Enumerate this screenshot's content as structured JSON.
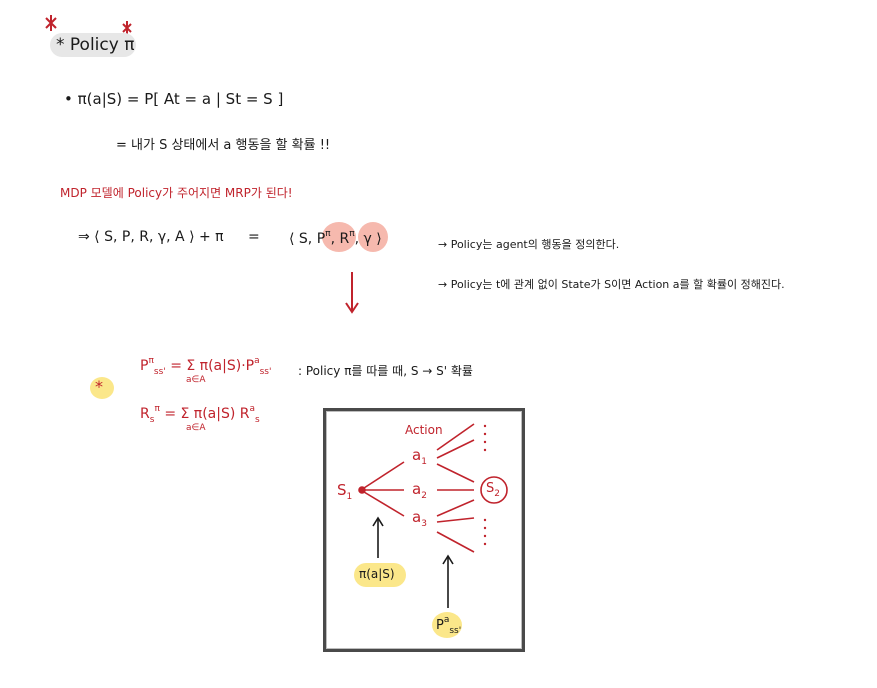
{
  "heading": {
    "label": "Policy π",
    "bullet": "*"
  },
  "definition": {
    "bullet": "•",
    "formula": "π(a|S) = P[ At = a | St = S ]",
    "meaning": "= 내가 S 상태에서 a 행동을 할 확률 !!"
  },
  "mdp_note": {
    "line": "MDP 모델에 Policy가 주어지면 MRP가 된다!",
    "lhs": "⇒ ⟨ S, P, R, γ, A ⟩ + π",
    "equals": "=",
    "rhs_open": "⟨ S,",
    "rhs_p": "P",
    "rhs_p_sup": "π",
    "rhs_comma": ",",
    "rhs_r": "R",
    "rhs_r_sup": "π",
    "rhs_close": ", γ ⟩",
    "note1": "→ Policy는 agent의 행동을 정의한다.",
    "note2": "→ Policy는 t에 관계 없이 State가 S이면 Action a를 할 확률이 정해진다."
  },
  "formulas": {
    "star": "*",
    "p_line": "P^π_ss' = Σ_{a∈A} π(a|S)·P^a_ss'",
    "p_lhs": "P",
    "p_sup": "π",
    "p_sub": "ss'",
    "p_rhs": "= Σ π(a|S)·P",
    "p_rhs_sup": "a",
    "p_rhs_sub": "ss'",
    "sum_under": "a∈A",
    "p_meaning": ": Policy π를 따를 때, S → S' 확률",
    "r_lhs": "R",
    "r_sup": "π",
    "r_sub": "s",
    "r_rhs": "= Σ π(a|S) R",
    "r_rhs_sup": "a",
    "r_rhs_sub": "s",
    "r_under": "a∈A"
  },
  "diagram": {
    "action_label": "Action",
    "s1": "S",
    "s1_sub": "1",
    "a1": "a",
    "a1_sub": "1",
    "a2": "a",
    "a2_sub": "2",
    "a3": "a",
    "a3_sub": "3",
    "s2": "S",
    "s2_sub": "2",
    "policy_label": "π(a|S)",
    "trans_label": "P",
    "trans_sup": "a",
    "trans_sub": "ss'"
  },
  "colors": {
    "accent_red": "#c0232c",
    "pink": "#f6b9ae",
    "yellow": "#fbe78a",
    "gray_pill": "#e7e7e7"
  }
}
